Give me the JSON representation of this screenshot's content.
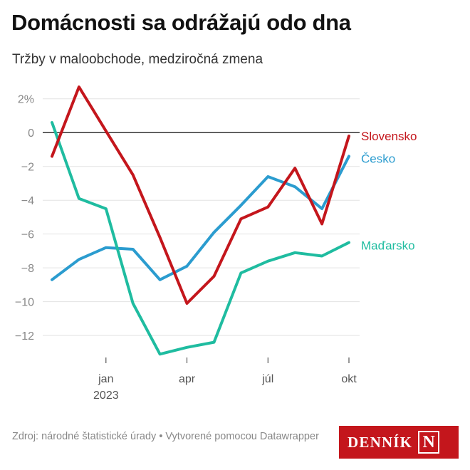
{
  "header": {
    "title": "Domácnosti sa odrážajú odo dna",
    "subtitle": "Tržby v maloobchode, medziročná zmena"
  },
  "chart_data": {
    "type": "line",
    "x": [
      "nov 2022",
      "dec 2022",
      "jan 2023",
      "feb 2023",
      "mar 2023",
      "apr 2023",
      "máj 2023",
      "jún 2023",
      "júl 2023",
      "aug 2023",
      "sep 2023",
      "okt 2023"
    ],
    "x_ticks": [
      {
        "index": 2,
        "label": "jan",
        "sublabel": "2023"
      },
      {
        "index": 5,
        "label": "apr",
        "sublabel": ""
      },
      {
        "index": 8,
        "label": "júl",
        "sublabel": ""
      },
      {
        "index": 11,
        "label": "okt",
        "sublabel": ""
      }
    ],
    "y_ticks": [
      {
        "value": 2,
        "label": "2%"
      },
      {
        "value": 0,
        "label": "0"
      },
      {
        "value": -2,
        "label": "−2"
      },
      {
        "value": -4,
        "label": "−4"
      },
      {
        "value": -6,
        "label": "−6"
      },
      {
        "value": -8,
        "label": "−8"
      },
      {
        "value": -10,
        "label": "−10"
      },
      {
        "value": -12,
        "label": "−12"
      }
    ],
    "ylim": [
      -13.3,
      3.0
    ],
    "series": [
      {
        "name": "Slovensko",
        "color": "#c4161c",
        "values": [
          -1.4,
          2.7,
          0.1,
          -2.5,
          -6.2,
          -10.1,
          -8.5,
          -5.1,
          -4.4,
          -2.1,
          -5.4,
          -0.2
        ]
      },
      {
        "name": "Česko",
        "color": "#2b9ccf",
        "values": [
          -8.7,
          -7.5,
          -6.8,
          -6.9,
          -8.7,
          -7.9,
          -5.9,
          -4.3,
          -2.6,
          -3.2,
          -4.5,
          -1.4
        ]
      },
      {
        "name": "Maďarsko",
        "color": "#1fbca0",
        "values": [
          0.6,
          -3.9,
          -4.5,
          -10.1,
          -13.1,
          -12.7,
          -12.4,
          -8.3,
          -7.6,
          -7.1,
          -7.3,
          -6.5
        ]
      }
    ]
  },
  "footer": {
    "source": "Zdroj: národné štatistické úrady • Vytvorené pomocou Datawrapper"
  },
  "logo": {
    "text": "DENNÍK",
    "mark": "N"
  }
}
